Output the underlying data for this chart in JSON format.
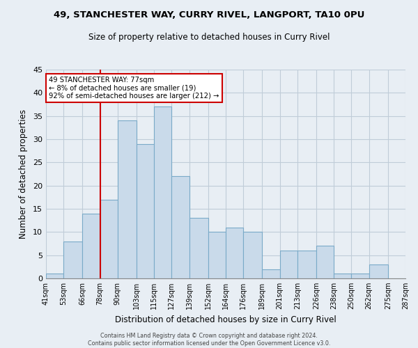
{
  "title": "49, STANCHESTER WAY, CURRY RIVEL, LANGPORT, TA10 0PU",
  "subtitle": "Size of property relative to detached houses in Curry Rivel",
  "xlabel": "Distribution of detached houses by size in Curry Rivel",
  "ylabel": "Number of detached properties",
  "bar_color": "#c9daea",
  "bar_edge_color": "#7aaac8",
  "vline_x": 78,
  "vline_color": "#cc0000",
  "annotation_text": "49 STANCHESTER WAY: 77sqm\n← 8% of detached houses are smaller (19)\n92% of semi-detached houses are larger (212) →",
  "annotation_box_color": "#ffffff",
  "annotation_box_edge": "#cc0000",
  "bins_left": [
    41,
    53,
    66,
    78,
    90,
    103,
    115,
    127,
    139,
    152,
    164,
    176,
    189,
    201,
    213,
    226,
    238,
    250,
    262,
    275
  ],
  "bins_right": [
    53,
    66,
    78,
    90,
    103,
    115,
    127,
    139,
    152,
    164,
    176,
    189,
    201,
    213,
    226,
    238,
    250,
    262,
    275,
    287
  ],
  "counts": [
    1,
    8,
    14,
    17,
    34,
    29,
    37,
    22,
    13,
    10,
    11,
    10,
    2,
    6,
    6,
    7,
    1,
    1,
    3,
    0
  ],
  "tick_labels": [
    "41sqm",
    "53sqm",
    "66sqm",
    "78sqm",
    "90sqm",
    "103sqm",
    "115sqm",
    "127sqm",
    "139sqm",
    "152sqm",
    "164sqm",
    "176sqm",
    "189sqm",
    "201sqm",
    "213sqm",
    "226sqm",
    "238sqm",
    "250sqm",
    "262sqm",
    "275sqm",
    "287sqm"
  ],
  "tick_positions": [
    41,
    53,
    66,
    78,
    90,
    103,
    115,
    127,
    139,
    152,
    164,
    176,
    189,
    201,
    213,
    226,
    238,
    250,
    262,
    275,
    287
  ],
  "ylim": [
    0,
    45
  ],
  "yticks": [
    0,
    5,
    10,
    15,
    20,
    25,
    30,
    35,
    40,
    45
  ],
  "footer_text": "Contains HM Land Registry data © Crown copyright and database right 2024.\nContains public sector information licensed under the Open Government Licence v3.0.",
  "bg_color": "#e8eef4",
  "plot_bg_color": "#e8eef4",
  "grid_color": "#c0ccd8"
}
